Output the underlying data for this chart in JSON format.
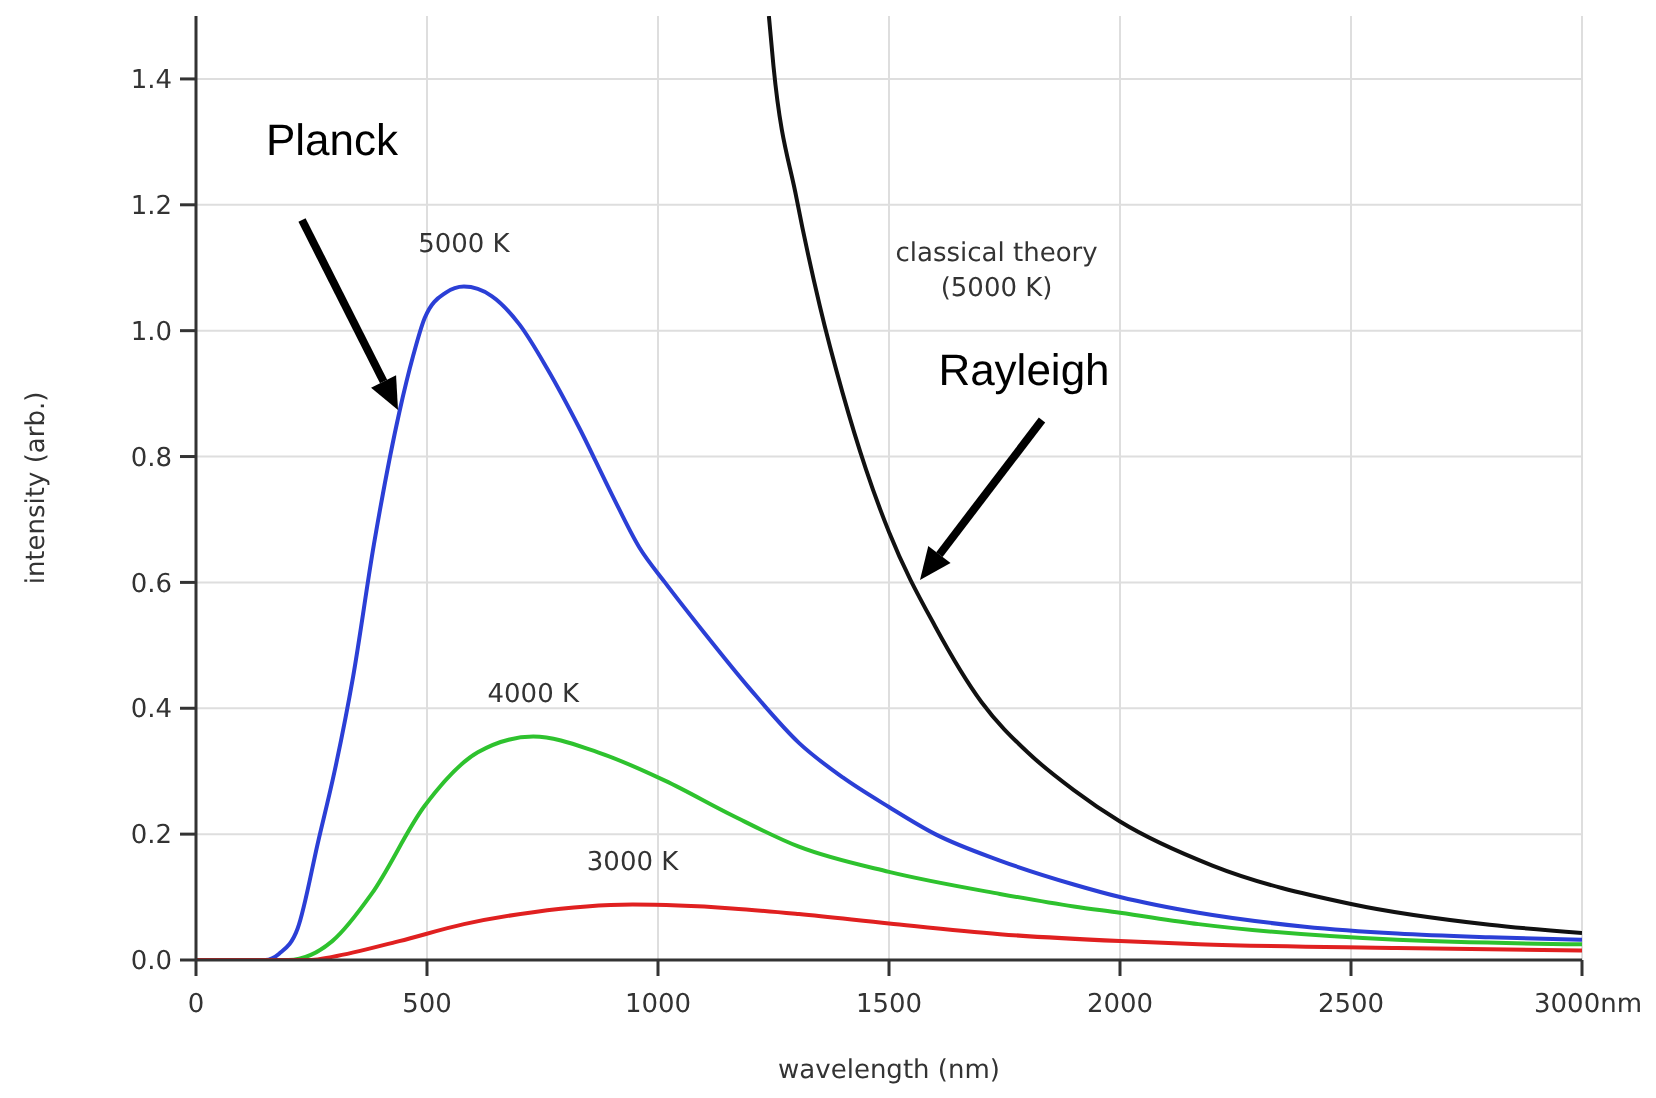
{
  "chart_data": {
    "type": "line",
    "xlabel": "wavelength (nm)",
    "ylabel": "intensity (arb.)",
    "xlim": [
      0,
      3000
    ],
    "ylim": [
      0,
      1.5
    ],
    "xticks": [
      0,
      500,
      1000,
      1500,
      2000,
      2500,
      {
        "value": 3000,
        "label": "3000nm"
      }
    ],
    "yticks": [
      {
        "value": 0,
        "label": "0.0"
      },
      {
        "value": 0.2,
        "label": "0.2"
      },
      {
        "value": 0.4,
        "label": "0.4"
      },
      {
        "value": 0.6,
        "label": "0.6"
      },
      {
        "value": 0.8,
        "label": "0.8"
      },
      {
        "value": 1.0,
        "label": "1.0"
      },
      {
        "value": 1.2,
        "label": "1.2"
      },
      {
        "value": 1.4,
        "label": "1.4"
      }
    ],
    "grid": true,
    "legend": false,
    "marker": "none",
    "line_style": "solid",
    "series": [
      {
        "name": "5000 K",
        "color": "#2b3fd6",
        "x": [
          0,
          150,
          180,
          220,
          265,
          300,
          340,
          385,
          440,
          470,
          495,
          540,
          580,
          640,
          700,
          760,
          830,
          900,
          960,
          1015,
          1100,
          1200,
          1305,
          1400,
          1500,
          1600,
          1740,
          1900,
          2000,
          2170,
          2400,
          2600,
          2800,
          3000
        ],
        "values": [
          0,
          0,
          0.01,
          0.05,
          0.19,
          0.3,
          0.45,
          0.66,
          0.87,
          0.96,
          1.02,
          1.06,
          1.07,
          1.055,
          1.01,
          0.94,
          0.845,
          0.74,
          0.655,
          0.6,
          0.52,
          0.43,
          0.345,
          0.29,
          0.243,
          0.2,
          0.158,
          0.12,
          0.1,
          0.075,
          0.053,
          0.042,
          0.036,
          0.032
        ]
      },
      {
        "name": "4000 K",
        "color": "#2ec22e",
        "x": [
          0,
          200,
          295,
          380,
          495,
          610,
          730,
          870,
          1015,
          1160,
          1305,
          1500,
          1740,
          1900,
          2000,
          2170,
          2600,
          3000
        ],
        "values": [
          0,
          0,
          0.03,
          0.105,
          0.245,
          0.33,
          0.355,
          0.33,
          0.285,
          0.23,
          0.18,
          0.14,
          0.105,
          0.085,
          0.075,
          0.057,
          0.032,
          0.025
        ]
      },
      {
        "name": "3000 K",
        "color": "#e02020",
        "x": [
          0,
          250,
          295,
          440,
          580,
          730,
          945,
          1160,
          1305,
          1500,
          1740,
          2000,
          2170,
          2600,
          3000
        ],
        "values": [
          0,
          0,
          0.005,
          0.03,
          0.057,
          0.076,
          0.088,
          0.082,
          0.073,
          0.058,
          0.041,
          0.03,
          0.025,
          0.019,
          0.015
        ]
      },
      {
        "name": "classical theory\n(5000 K)",
        "color": "#111111",
        "x": [
          1240,
          1250,
          1300,
          1350,
          1400,
          1450,
          1500,
          1600,
          1700,
          1800,
          1900,
          2000,
          2200,
          2500,
          2800,
          3000
        ],
        "values": [
          1.5,
          1.42,
          1.21,
          1.04,
          0.9,
          0.78,
          0.68,
          0.53,
          0.41,
          0.33,
          0.27,
          0.22,
          0.15,
          0.089,
          0.056,
          0.043
        ]
      }
    ],
    "annotations": [
      "Planck",
      "Rayleigh"
    ]
  }
}
